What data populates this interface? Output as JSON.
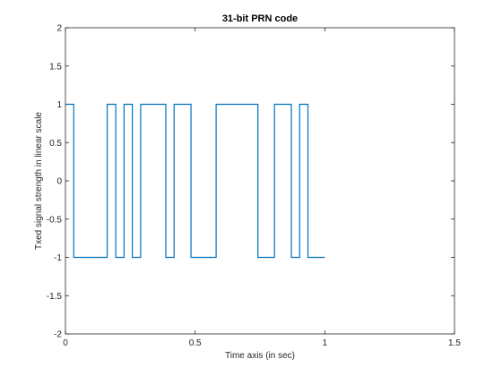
{
  "chart_data": {
    "type": "line",
    "title": "31-bit PRN code",
    "xlabel": "Time axis (in sec)",
    "ylabel": "Txed signal strength in linear scale",
    "xlim": [
      0,
      1.5
    ],
    "ylim": [
      -2,
      2
    ],
    "xticks": [
      0,
      0.5,
      1,
      1.5
    ],
    "xtick_labels": [
      "0",
      "0.5",
      "1",
      "1.5"
    ],
    "yticks": [
      -2,
      -1.5,
      -1,
      -0.5,
      0,
      0.5,
      1,
      1.5,
      2
    ],
    "ytick_labels": [
      "-2",
      "-1.5",
      "-1",
      "-0.5",
      "0",
      "0.5",
      "1",
      "1.5",
      "2"
    ],
    "grid": false,
    "line_color": "#0072bd",
    "series": [
      {
        "step": "post",
        "x": [
          0,
          0.032,
          0.161,
          0.194,
          0.226,
          0.258,
          0.29,
          0.387,
          0.419,
          0.484,
          0.581,
          0.742,
          0.806,
          0.871,
          0.903,
          0.935,
          1.0
        ],
        "values": [
          1,
          -1,
          1,
          -1,
          1,
          -1,
          1,
          -1,
          1,
          -1,
          1,
          -1,
          1,
          -1,
          1,
          -1,
          -1
        ]
      }
    ]
  }
}
